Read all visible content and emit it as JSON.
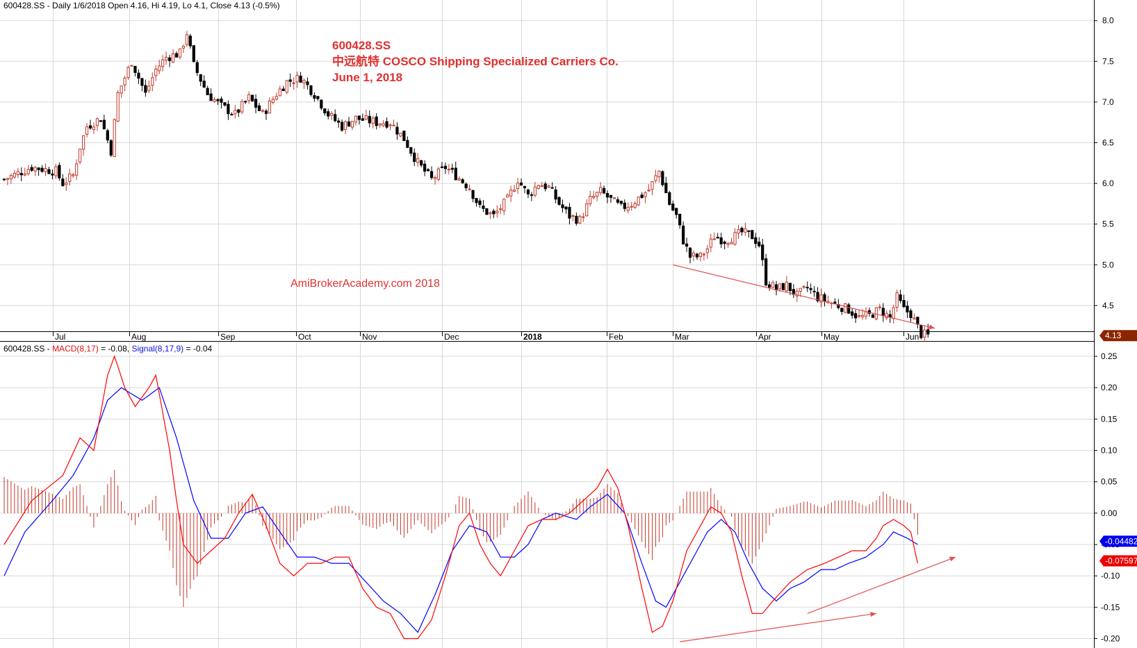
{
  "price_panel": {
    "header": {
      "symbol": "600428.SS",
      "description": " - Daily 1/6/2018 Open 4.16, Hi 4.19, Lo 4.1, Close 4.13 (-0.5%)"
    },
    "title_lines": [
      "600428.SS",
      "中远航特 COSCO Shipping Specialized Carriers Co.",
      "June 1, 2018"
    ],
    "watermark": "AmiBrokerAcademy.com  2018",
    "last_close_label": "4.13"
  },
  "macd_panel": {
    "header": {
      "symbol": "600428.SS - ",
      "macd_label": "MACD(8,17)",
      "macd_value": " = -0.08, ",
      "signal_label": "Signal(8,17,9)",
      "signal_value": " = -0.04"
    },
    "signal_tag": "-0.04482",
    "macd_tag": "-0.07597"
  },
  "colors": {
    "up": "#c0392b",
    "down": "#000000",
    "macd": "#ff0000",
    "signal": "#0000ff",
    "hist": "#c0392b",
    "trend": "#e05050",
    "grid": "#d8d8d8",
    "tag_close": "#8b2500"
  },
  "chart_data": [
    {
      "type": "candlestick",
      "x_tick_labels": [
        "Jul",
        "Aug",
        "Sep",
        "Oct",
        "Nov",
        "Dec",
        "2018",
        "Feb",
        "Mar",
        "Apr",
        "May",
        "Jun"
      ],
      "y_tick_labels": [
        "8.0",
        "7.5",
        "7.0",
        "6.5",
        "6.0",
        "5.5",
        "5.0",
        "4.5"
      ],
      "ylim": [
        4.2,
        8.1
      ],
      "grid": true,
      "price_path": [
        [
          0,
          6.05
        ],
        [
          8,
          6.2
        ],
        [
          15,
          6.15
        ],
        [
          17,
          6.0
        ],
        [
          20,
          6.1
        ],
        [
          22,
          6.45
        ],
        [
          24,
          6.7
        ],
        [
          28,
          6.8
        ],
        [
          31,
          6.4
        ],
        [
          33,
          7.1
        ],
        [
          37,
          7.5
        ],
        [
          41,
          7.1
        ],
        [
          44,
          7.4
        ],
        [
          47,
          7.55
        ],
        [
          51,
          7.6
        ],
        [
          53,
          7.85
        ],
        [
          55,
          7.45
        ],
        [
          59,
          7.1
        ],
        [
          63,
          6.95
        ],
        [
          67,
          6.85
        ],
        [
          71,
          7.05
        ],
        [
          75,
          6.85
        ],
        [
          79,
          7.1
        ],
        [
          82,
          7.25
        ],
        [
          86,
          7.3
        ],
        [
          90,
          7.1
        ],
        [
          94,
          6.85
        ],
        [
          98,
          6.7
        ],
        [
          102,
          6.8
        ],
        [
          108,
          6.75
        ],
        [
          112,
          6.75
        ],
        [
          116,
          6.55
        ],
        [
          120,
          6.25
        ],
        [
          124,
          6.05
        ],
        [
          128,
          6.2
        ],
        [
          131,
          6.1
        ],
        [
          135,
          5.95
        ],
        [
          138,
          5.7
        ],
        [
          142,
          5.6
        ],
        [
          146,
          5.8
        ],
        [
          149,
          6.05
        ],
        [
          152,
          5.85
        ],
        [
          155,
          6.0
        ],
        [
          158,
          5.95
        ],
        [
          161,
          5.75
        ],
        [
          164,
          5.6
        ],
        [
          167,
          5.55
        ],
        [
          170,
          5.8
        ],
        [
          173,
          5.9
        ],
        [
          176,
          5.8
        ],
        [
          179,
          5.7
        ],
        [
          182,
          5.75
        ],
        [
          184,
          5.82
        ],
        [
          187,
          5.92
        ],
        [
          190,
          6.15
        ],
        [
          193,
          5.75
        ],
        [
          195,
          5.6
        ],
        [
          197,
          5.3
        ],
        [
          199,
          5.1
        ],
        [
          202,
          5.1
        ],
        [
          204,
          5.2
        ],
        [
          206,
          5.35
        ],
        [
          209,
          5.3
        ],
        [
          212,
          5.35
        ],
        [
          214,
          5.4
        ],
        [
          217,
          5.35
        ],
        [
          219,
          5.25
        ],
        [
          221,
          4.8
        ],
        [
          224,
          4.7
        ],
        [
          227,
          4.75
        ],
        [
          230,
          4.62
        ],
        [
          233,
          4.72
        ],
        [
          236,
          4.6
        ],
        [
          239,
          4.55
        ],
        [
          242,
          4.5
        ],
        [
          245,
          4.45
        ],
        [
          248,
          4.35
        ],
        [
          251,
          4.38
        ],
        [
          254,
          4.45
        ],
        [
          257,
          4.35
        ],
        [
          259,
          4.6
        ],
        [
          261,
          4.45
        ],
        [
          263,
          4.4
        ],
        [
          266,
          4.15
        ],
        [
          268,
          4.13
        ]
      ],
      "macd": [
        [
          0,
          -0.05
        ],
        [
          8,
          0.02
        ],
        [
          17,
          0.06
        ],
        [
          22,
          0.12
        ],
        [
          26,
          0.1
        ],
        [
          30,
          0.22
        ],
        [
          32,
          0.25
        ],
        [
          35,
          0.2
        ],
        [
          38,
          0.17
        ],
        [
          42,
          0.2
        ],
        [
          44,
          0.22
        ],
        [
          48,
          0.1
        ],
        [
          50,
          0.02
        ],
        [
          52,
          -0.05
        ],
        [
          56,
          -0.08
        ],
        [
          60,
          -0.06
        ],
        [
          64,
          -0.04
        ],
        [
          68,
          0.0
        ],
        [
          72,
          0.03
        ],
        [
          76,
          -0.02
        ],
        [
          80,
          -0.08
        ],
        [
          84,
          -0.1
        ],
        [
          88,
          -0.08
        ],
        [
          92,
          -0.08
        ],
        [
          96,
          -0.07
        ],
        [
          100,
          -0.07
        ],
        [
          104,
          -0.12
        ],
        [
          108,
          -0.15
        ],
        [
          112,
          -0.16
        ],
        [
          116,
          -0.2
        ],
        [
          120,
          -0.2
        ],
        [
          124,
          -0.17
        ],
        [
          128,
          -0.1
        ],
        [
          132,
          -0.02
        ],
        [
          135,
          0.0
        ],
        [
          138,
          -0.05
        ],
        [
          141,
          -0.08
        ],
        [
          144,
          -0.1
        ],
        [
          148,
          -0.06
        ],
        [
          152,
          -0.02
        ],
        [
          156,
          -0.01
        ],
        [
          160,
          -0.01
        ],
        [
          164,
          0.0
        ],
        [
          168,
          0.02
        ],
        [
          172,
          0.04
        ],
        [
          175,
          0.07
        ],
        [
          178,
          0.04
        ],
        [
          181,
          -0.02
        ],
        [
          185,
          -0.12
        ],
        [
          188,
          -0.19
        ],
        [
          191,
          -0.18
        ],
        [
          194,
          -0.14
        ],
        [
          198,
          -0.06
        ],
        [
          202,
          -0.02
        ],
        [
          205,
          0.01
        ],
        [
          208,
          0.0
        ],
        [
          211,
          -0.03
        ],
        [
          214,
          -0.1
        ],
        [
          217,
          -0.16
        ],
        [
          220,
          -0.16
        ],
        [
          223,
          -0.14
        ],
        [
          228,
          -0.11
        ],
        [
          233,
          -0.09
        ],
        [
          238,
          -0.08
        ],
        [
          242,
          -0.07
        ],
        [
          246,
          -0.06
        ],
        [
          250,
          -0.06
        ],
        [
          253,
          -0.04
        ],
        [
          255,
          -0.02
        ],
        [
          258,
          -0.01
        ],
        [
          261,
          -0.02
        ],
        [
          263,
          -0.03
        ],
        [
          265,
          -0.08
        ]
      ],
      "signal": [
        [
          0,
          -0.1
        ],
        [
          6,
          -0.03
        ],
        [
          14,
          0.02
        ],
        [
          20,
          0.06
        ],
        [
          26,
          0.12
        ],
        [
          30,
          0.18
        ],
        [
          34,
          0.2
        ],
        [
          40,
          0.18
        ],
        [
          45,
          0.2
        ],
        [
          50,
          0.12
        ],
        [
          55,
          0.02
        ],
        [
          60,
          -0.04
        ],
        [
          65,
          -0.04
        ],
        [
          70,
          0.0
        ],
        [
          75,
          0.01
        ],
        [
          80,
          -0.03
        ],
        [
          85,
          -0.07
        ],
        [
          90,
          -0.07
        ],
        [
          95,
          -0.08
        ],
        [
          100,
          -0.08
        ],
        [
          105,
          -0.11
        ],
        [
          110,
          -0.14
        ],
        [
          115,
          -0.16
        ],
        [
          120,
          -0.19
        ],
        [
          125,
          -0.13
        ],
        [
          130,
          -0.06
        ],
        [
          135,
          -0.02
        ],
        [
          140,
          -0.03
        ],
        [
          144,
          -0.07
        ],
        [
          148,
          -0.07
        ],
        [
          152,
          -0.05
        ],
        [
          156,
          -0.01
        ],
        [
          160,
          0.0
        ],
        [
          166,
          -0.01
        ],
        [
          170,
          0.01
        ],
        [
          175,
          0.03
        ],
        [
          180,
          0.0
        ],
        [
          185,
          -0.08
        ],
        [
          189,
          -0.14
        ],
        [
          192,
          -0.15
        ],
        [
          196,
          -0.11
        ],
        [
          200,
          -0.07
        ],
        [
          204,
          -0.03
        ],
        [
          208,
          -0.01
        ],
        [
          212,
          -0.03
        ],
        [
          216,
          -0.08
        ],
        [
          220,
          -0.12
        ],
        [
          224,
          -0.14
        ],
        [
          228,
          -0.12
        ],
        [
          232,
          -0.11
        ],
        [
          237,
          -0.09
        ],
        [
          241,
          -0.09
        ],
        [
          245,
          -0.08
        ],
        [
          250,
          -0.07
        ],
        [
          255,
          -0.05
        ],
        [
          258,
          -0.03
        ],
        [
          262,
          -0.04
        ],
        [
          265,
          -0.05
        ]
      ],
      "y_tick_labels_macd": [
        "0.25",
        "0.20",
        "0.15",
        "0.10",
        "0.05",
        "0.00",
        "-0.05",
        "-0.10",
        "-0.15",
        "-0.20"
      ],
      "ylim_macd": [
        -0.215,
        0.27
      ],
      "trendlines": [
        {
          "panel": "price",
          "from": [
            194,
            5.0
          ],
          "to": [
            270,
            4.22
          ]
        },
        {
          "panel": "macd",
          "from": [
            196,
            -0.205
          ],
          "to": [
            253,
            -0.16
          ]
        },
        {
          "panel": "macd",
          "from": [
            233,
            -0.16
          ],
          "to": [
            276,
            -0.07
          ]
        }
      ]
    }
  ]
}
